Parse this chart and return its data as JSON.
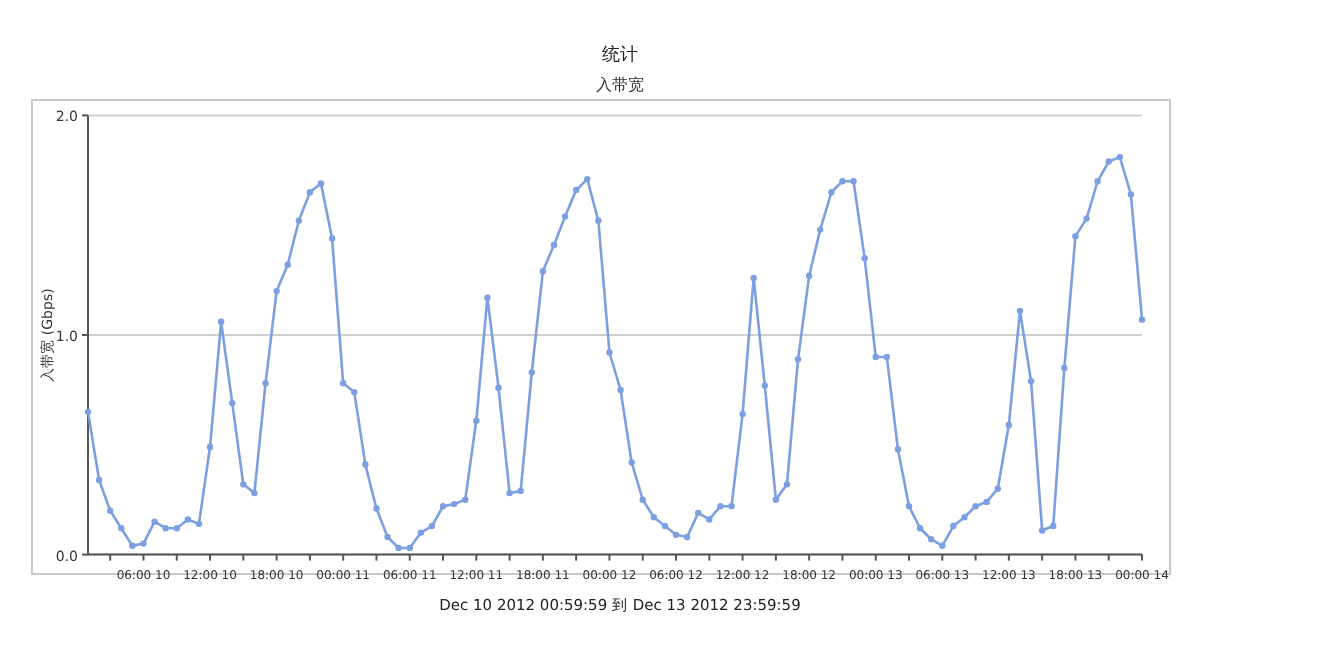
{
  "chart_data": {
    "type": "line",
    "title": "统计",
    "subtitle": "入带宽",
    "ylabel": "入带宽 (Gbps)",
    "xlabel": "Dec 10 2012  00:59:59  到  Dec 13 2012  23:59:59",
    "x": [
      "2012-12-10T01:00",
      "2012-12-10T02:00",
      "2012-12-10T03:00",
      "2012-12-10T04:00",
      "2012-12-10T05:00",
      "2012-12-10T06:00",
      "2012-12-10T07:00",
      "2012-12-10T08:00",
      "2012-12-10T09:00",
      "2012-12-10T10:00",
      "2012-12-10T11:00",
      "2012-12-10T12:00",
      "2012-12-10T13:00",
      "2012-12-10T14:00",
      "2012-12-10T15:00",
      "2012-12-10T16:00",
      "2012-12-10T17:00",
      "2012-12-10T18:00",
      "2012-12-10T19:00",
      "2012-12-10T20:00",
      "2012-12-10T21:00",
      "2012-12-10T22:00",
      "2012-12-10T23:00",
      "2012-12-11T00:00",
      "2012-12-11T01:00",
      "2012-12-11T02:00",
      "2012-12-11T03:00",
      "2012-12-11T04:00",
      "2012-12-11T05:00",
      "2012-12-11T06:00",
      "2012-12-11T07:00",
      "2012-12-11T08:00",
      "2012-12-11T09:00",
      "2012-12-11T10:00",
      "2012-12-11T11:00",
      "2012-12-11T12:00",
      "2012-12-11T13:00",
      "2012-12-11T14:00",
      "2012-12-11T15:00",
      "2012-12-11T16:00",
      "2012-12-11T17:00",
      "2012-12-11T18:00",
      "2012-12-11T19:00",
      "2012-12-11T20:00",
      "2012-12-11T21:00",
      "2012-12-11T22:00",
      "2012-12-11T23:00",
      "2012-12-12T00:00",
      "2012-12-12T01:00",
      "2012-12-12T02:00",
      "2012-12-12T03:00",
      "2012-12-12T04:00",
      "2012-12-12T05:00",
      "2012-12-12T06:00",
      "2012-12-12T07:00",
      "2012-12-12T08:00",
      "2012-12-12T09:00",
      "2012-12-12T10:00",
      "2012-12-12T11:00",
      "2012-12-12T12:00",
      "2012-12-12T13:00",
      "2012-12-12T14:00",
      "2012-12-12T15:00",
      "2012-12-12T16:00",
      "2012-12-12T17:00",
      "2012-12-12T18:00",
      "2012-12-12T19:00",
      "2012-12-12T20:00",
      "2012-12-12T21:00",
      "2012-12-12T22:00",
      "2012-12-12T23:00",
      "2012-12-13T00:00",
      "2012-12-13T01:00",
      "2012-12-13T02:00",
      "2012-12-13T03:00",
      "2012-12-13T04:00",
      "2012-12-13T05:00",
      "2012-12-13T06:00",
      "2012-12-13T07:00",
      "2012-12-13T08:00",
      "2012-12-13T09:00",
      "2012-12-13T10:00",
      "2012-12-13T11:00",
      "2012-12-13T12:00",
      "2012-12-13T13:00",
      "2012-12-13T14:00",
      "2012-12-13T15:00",
      "2012-12-13T16:00",
      "2012-12-13T17:00",
      "2012-12-13T18:00",
      "2012-12-13T19:00",
      "2012-12-13T20:00",
      "2012-12-13T21:00",
      "2012-12-13T22:00",
      "2012-12-13T23:00",
      "2012-12-14T00:00"
    ],
    "series": [
      {
        "color": "#7b9fe0",
        "values": [
          0.65,
          0.34,
          0.2,
          0.12,
          0.04,
          0.05,
          0.15,
          0.12,
          0.12,
          0.16,
          0.14,
          0.49,
          1.06,
          0.69,
          0.32,
          0.28,
          0.78,
          1.2,
          1.32,
          1.52,
          1.65,
          1.69,
          1.44,
          0.78,
          0.74,
          0.41,
          0.21,
          0.08,
          0.03,
          0.03,
          0.1,
          0.13,
          0.22,
          0.23,
          0.25,
          0.61,
          1.17,
          0.76,
          0.28,
          0.29,
          0.83,
          1.29,
          1.41,
          1.54,
          1.66,
          1.71,
          1.52,
          0.92,
          0.75,
          0.42,
          0.25,
          0.17,
          0.13,
          0.09,
          0.08,
          0.19,
          0.16,
          0.22,
          0.22,
          0.64,
          1.26,
          0.77,
          0.25,
          0.32,
          0.89,
          1.27,
          1.48,
          1.65,
          1.7,
          1.7,
          1.35,
          0.9,
          0.9,
          0.48,
          0.22,
          0.12,
          0.07,
          0.04,
          0.13,
          0.17,
          0.22,
          0.24,
          0.3,
          0.59,
          1.11,
          0.79,
          0.11,
          0.13,
          0.85,
          1.45,
          1.53,
          1.7,
          1.79,
          1.81,
          1.64,
          1.07
        ]
      }
    ],
    "xlim": [
      "2012-12-10T01:00",
      "2012-12-14T00:00"
    ],
    "xticks": [
      {
        "value": "2012-12-10T03:00",
        "label": null
      },
      {
        "value": "2012-12-10T06:00",
        "label": "06:00 10"
      },
      {
        "value": "2012-12-10T09:00",
        "label": null
      },
      {
        "value": "2012-12-10T12:00",
        "label": "12:00 10"
      },
      {
        "value": "2012-12-10T15:00",
        "label": null
      },
      {
        "value": "2012-12-10T18:00",
        "label": "18:00 10"
      },
      {
        "value": "2012-12-10T21:00",
        "label": null
      },
      {
        "value": "2012-12-11T00:00",
        "label": "00:00 11"
      },
      {
        "value": "2012-12-11T03:00",
        "label": null
      },
      {
        "value": "2012-12-11T06:00",
        "label": "06:00 11"
      },
      {
        "value": "2012-12-11T09:00",
        "label": null
      },
      {
        "value": "2012-12-11T12:00",
        "label": "12:00 11"
      },
      {
        "value": "2012-12-11T15:00",
        "label": null
      },
      {
        "value": "2012-12-11T18:00",
        "label": "18:00 11"
      },
      {
        "value": "2012-12-11T21:00",
        "label": null
      },
      {
        "value": "2012-12-12T00:00",
        "label": "00:00 12"
      },
      {
        "value": "2012-12-12T03:00",
        "label": null
      },
      {
        "value": "2012-12-12T06:00",
        "label": "06:00 12"
      },
      {
        "value": "2012-12-12T09:00",
        "label": null
      },
      {
        "value": "2012-12-12T12:00",
        "label": "12:00 12"
      },
      {
        "value": "2012-12-12T15:00",
        "label": null
      },
      {
        "value": "2012-12-12T18:00",
        "label": "18:00 12"
      },
      {
        "value": "2012-12-12T21:00",
        "label": null
      },
      {
        "value": "2012-12-13T00:00",
        "label": "00:00 13"
      },
      {
        "value": "2012-12-13T03:00",
        "label": null
      },
      {
        "value": "2012-12-13T06:00",
        "label": "06:00 13"
      },
      {
        "value": "2012-12-13T09:00",
        "label": null
      },
      {
        "value": "2012-12-13T12:00",
        "label": "12:00 13"
      },
      {
        "value": "2012-12-13T15:00",
        "label": null
      },
      {
        "value": "2012-12-13T18:00",
        "label": "18:00 13"
      },
      {
        "value": "2012-12-13T21:00",
        "label": null
      },
      {
        "value": "2012-12-14T00:00",
        "label": "00:00 14"
      }
    ],
    "ylim": [
      0,
      2
    ],
    "yticks": [
      {
        "value": 0,
        "label": "0.0"
      },
      {
        "value": 1,
        "label": "1.0"
      },
      {
        "value": 2,
        "label": "2.0"
      }
    ],
    "grid": "y",
    "marker": "circle",
    "line_style": "solid"
  }
}
